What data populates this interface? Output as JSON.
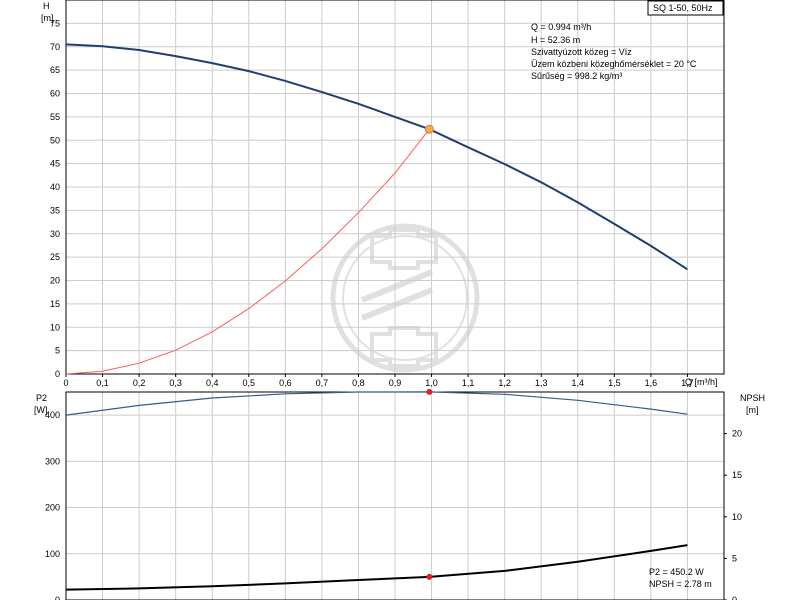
{
  "model_label": "SQ 1-50, 50Hz",
  "top_info": [
    "Q = 0.994 m³/h",
    "H = 52.36 m",
    "Szivattyúzott közeg = Víz",
    "Üzem közbeni közeghőmérséklet = 20 °C",
    "Sűrűség = 998.2 kg/m³"
  ],
  "bottom_info": [
    "P2 = 450.2 W",
    "NPSH = 2.78 m"
  ],
  "colors": {
    "head_curve": "#1f3f73",
    "system_curve": "#ff5a5a",
    "power_curve": "#355a8c",
    "npsh_curve": "#000000",
    "operating_point": "#f2b233",
    "marker": "#e02020",
    "watermark": "#c8c8c8"
  },
  "chart_data": [
    {
      "type": "line",
      "name": "head-chart",
      "ylabel_top": "H",
      "ylabel_unit": "[m]",
      "xlabel": "Q [m³/h]",
      "xlim": [
        0,
        1.8
      ],
      "ylim": [
        0,
        80
      ],
      "x_ticks": [
        "0",
        "0,1",
        "0,2",
        "0,3",
        "0,4",
        "0,5",
        "0,6",
        "0,7",
        "0,8",
        "0,9",
        "1,0",
        "1,1",
        "1,2",
        "1,3",
        "1,4",
        "1,5",
        "1,6",
        "1,7"
      ],
      "y_ticks": [
        "0",
        "5",
        "10",
        "15",
        "20",
        "25",
        "30",
        "35",
        "40",
        "45",
        "50",
        "55",
        "60",
        "65",
        "70",
        "75"
      ],
      "grid": true,
      "series": [
        {
          "key": "head",
          "x": [
            0,
            0.1,
            0.2,
            0.3,
            0.4,
            0.5,
            0.6,
            0.7,
            0.8,
            0.9,
            0.994,
            1.1,
            1.2,
            1.3,
            1.4,
            1.5,
            1.6,
            1.7
          ],
          "y": [
            70.5,
            70.1,
            69.3,
            68.0,
            66.5,
            64.8,
            62.7,
            60.3,
            57.8,
            55.0,
            52.36,
            48.5,
            44.9,
            41.0,
            36.7,
            32.1,
            27.4,
            22.4
          ]
        },
        {
          "key": "system",
          "x": [
            0,
            0.1,
            0.2,
            0.3,
            0.4,
            0.5,
            0.6,
            0.7,
            0.8,
            0.9,
            0.994
          ],
          "y": [
            0,
            0.6,
            2.3,
            5.1,
            9.0,
            14.0,
            19.9,
            26.8,
            34.5,
            43.0,
            52.36
          ]
        }
      ],
      "operating_point": {
        "x": 0.994,
        "y": 52.36
      }
    },
    {
      "type": "line",
      "name": "power-npsh-chart",
      "ylabel_left": "P2",
      "ylabel_left_unit": "[W]",
      "ylabel_right": "NPSH",
      "ylabel_right_unit": "[m]",
      "xlim": [
        0,
        1.8
      ],
      "ylim_left": [
        0,
        450
      ],
      "ylim_right": [
        0,
        25
      ],
      "y_ticks_left": [
        "0",
        "100",
        "200",
        "300",
        "400"
      ],
      "y_ticks_right": [
        "0",
        "5",
        "10",
        "15",
        "20"
      ],
      "grid": true,
      "series": [
        {
          "key": "power",
          "axis": "left",
          "x": [
            0,
            0.2,
            0.4,
            0.6,
            0.8,
            0.994,
            1.2,
            1.4,
            1.6,
            1.7
          ],
          "y": [
            400,
            421,
            437,
            446,
            450,
            450.2,
            445,
            432,
            413,
            402
          ]
        },
        {
          "key": "npsh",
          "axis": "right",
          "x": [
            0,
            0.2,
            0.4,
            0.6,
            0.8,
            0.994,
            1.2,
            1.4,
            1.6,
            1.7
          ],
          "y": [
            1.25,
            1.4,
            1.65,
            2.0,
            2.4,
            2.78,
            3.5,
            4.6,
            5.9,
            6.6
          ]
        }
      ],
      "markers": [
        {
          "axis": "left",
          "x": 0.994,
          "y": 450.2
        },
        {
          "axis": "right",
          "x": 0.994,
          "y": 2.78
        }
      ]
    }
  ]
}
